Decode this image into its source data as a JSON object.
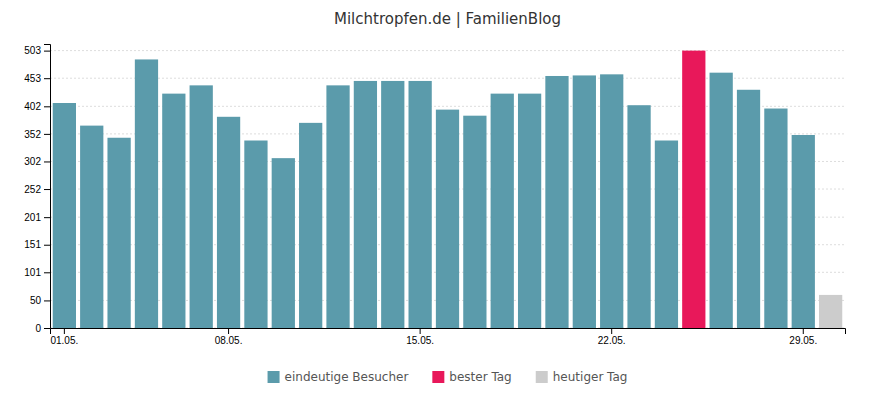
{
  "chart_data": {
    "type": "bar",
    "title": "Milchtropfen.de | FamilienBlog",
    "categories": [
      "01.05.",
      null,
      null,
      null,
      null,
      null,
      "08.05.",
      null,
      null,
      null,
      null,
      null,
      null,
      "15.05.",
      null,
      null,
      null,
      null,
      null,
      null,
      "22.05.",
      null,
      null,
      null,
      null,
      null,
      null,
      "29.05.",
      null
    ],
    "series": [
      {
        "name": "eindeutige Besucher",
        "color": "#5b9bab",
        "values": [
          408,
          367,
          345,
          487,
          425,
          440,
          383,
          340,
          308,
          372,
          440,
          448,
          448,
          448,
          396,
          385,
          425,
          425,
          457,
          458,
          460,
          404,
          340,
          null,
          463,
          432,
          398,
          350,
          null
        ]
      },
      {
        "name": "bester Tag",
        "color": "#e8185a",
        "values": [
          null,
          null,
          null,
          null,
          null,
          null,
          null,
          null,
          null,
          null,
          null,
          null,
          null,
          null,
          null,
          null,
          null,
          null,
          null,
          null,
          null,
          null,
          null,
          503,
          null,
          null,
          null,
          null,
          null
        ]
      },
      {
        "name": "heutiger Tag",
        "color": "#cccccc",
        "values": [
          null,
          null,
          null,
          null,
          null,
          null,
          null,
          null,
          null,
          null,
          null,
          null,
          null,
          null,
          null,
          null,
          null,
          null,
          null,
          null,
          null,
          null,
          null,
          null,
          null,
          null,
          null,
          null,
          60
        ]
      }
    ],
    "stacked": true,
    "ylim": [
      0,
      515
    ],
    "yticks": [
      0,
      50,
      101,
      151,
      201,
      252,
      302,
      352,
      402,
      453,
      503
    ],
    "grid": true,
    "legend": "bottom"
  }
}
